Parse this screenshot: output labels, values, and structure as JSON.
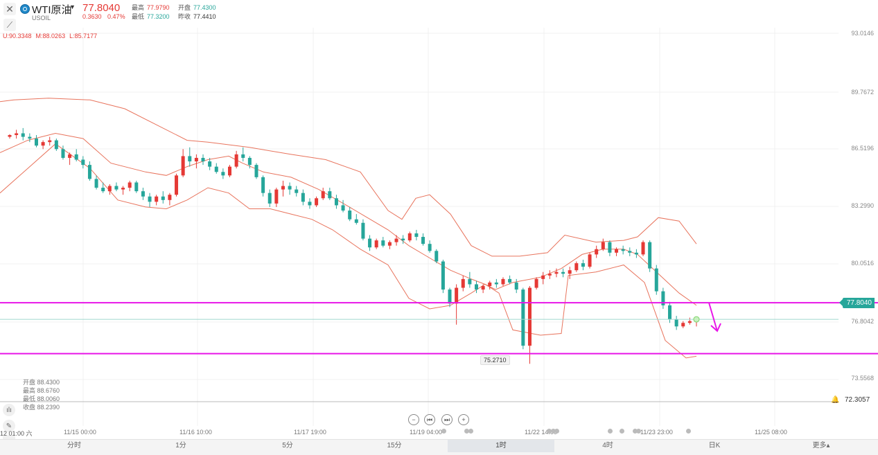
{
  "header": {
    "symbol_name": "WTI原油",
    "symbol_code": "USOIL",
    "price": "77.8040",
    "change": "0.3630",
    "change_pct": "0.47%",
    "high_label": "最高",
    "high_value": "77.9790",
    "open_label": "开盘",
    "open_value": "77.4300",
    "low_label": "最低",
    "low_value": "77.3200",
    "prev_close_label": "昨收",
    "prev_close_value": "77.4410"
  },
  "indicator": {
    "upper": "U:90.3348",
    "middle": "M:88.0263",
    "lower": "L:85.7177"
  },
  "ohlc_panel": [
    "开盘 88.4300",
    "最高 88.6760",
    "最低 88.0060",
    "收盘 88.2390"
  ],
  "price_tags": {
    "last": "77.8040",
    "alert": "72.3057",
    "annotation_low": "75.2710"
  },
  "first_date_label": "12 01:00 六",
  "timeframes": [
    "分时",
    "1分",
    "5分",
    "15分",
    "1时",
    "4时",
    "日K",
    "更多▴"
  ],
  "active_timeframe_index": 4,
  "colors": {
    "up": "#e53935",
    "down": "#26a69a",
    "band": "#e8735c",
    "horizontal_line": "#e815e8",
    "arrow": "#e815e8",
    "last_line": "#9fd6cf"
  },
  "chart_data": {
    "type": "candlestick",
    "y_ticks": [
      "93.0146",
      "89.7672",
      "86.5196",
      "83.2990",
      "80.0516",
      "76.8042",
      "73.5568"
    ],
    "ylim": [
      71.85,
      94.1
    ],
    "x_ticks": [
      "11/15 00:00",
      "11/16 10:00",
      "11/17 19:00",
      "11/19 04:00",
      "11/22 14:00",
      "11/23 23:00",
      "11/25 08:00"
    ],
    "horizontal_lines": [
      78.75,
      75.85
    ],
    "last_price": 77.804,
    "candles": [
      [
        88.2,
        88.35,
        88.1,
        88.3
      ],
      [
        88.3,
        88.6,
        88.1,
        88.4
      ],
      [
        88.4,
        88.7,
        88.0,
        88.2
      ],
      [
        88.2,
        88.4,
        87.9,
        88.1
      ],
      [
        88.1,
        88.3,
        87.6,
        87.7
      ],
      [
        87.7,
        88.0,
        87.5,
        87.9
      ],
      [
        87.9,
        88.2,
        87.7,
        88.0
      ],
      [
        88.0,
        88.1,
        87.4,
        87.5
      ],
      [
        87.5,
        87.7,
        86.9,
        87.0
      ],
      [
        87.0,
        87.3,
        86.6,
        87.2
      ],
      [
        87.2,
        87.5,
        86.8,
        86.9
      ],
      [
        86.9,
        87.1,
        86.4,
        86.6
      ],
      [
        86.6,
        86.8,
        85.7,
        85.8
      ],
      [
        85.8,
        86.0,
        85.2,
        85.3
      ],
      [
        85.3,
        85.6,
        85.0,
        85.1
      ],
      [
        85.1,
        85.5,
        84.9,
        85.4
      ],
      [
        85.4,
        85.6,
        85.1,
        85.2
      ],
      [
        85.2,
        85.4,
        84.9,
        85.3
      ],
      [
        85.3,
        85.7,
        85.1,
        85.6
      ],
      [
        85.6,
        85.7,
        85.0,
        85.1
      ],
      [
        85.1,
        85.3,
        84.6,
        84.8
      ],
      [
        84.8,
        85.0,
        84.2,
        84.5
      ],
      [
        84.5,
        84.9,
        84.3,
        84.8
      ],
      [
        84.8,
        85.1,
        84.4,
        84.6
      ],
      [
        84.6,
        85.0,
        84.3,
        84.9
      ],
      [
        84.9,
        86.1,
        84.8,
        86.0
      ],
      [
        86.0,
        87.5,
        85.9,
        87.1
      ],
      [
        87.1,
        87.6,
        86.5,
        86.8
      ],
      [
        86.8,
        87.2,
        86.4,
        87.0
      ],
      [
        87.0,
        87.2,
        86.6,
        86.8
      ],
      [
        86.8,
        87.0,
        86.3,
        86.5
      ],
      [
        86.5,
        86.7,
        86.1,
        86.2
      ],
      [
        86.2,
        86.4,
        85.8,
        86.0
      ],
      [
        86.0,
        86.6,
        85.9,
        86.5
      ],
      [
        86.5,
        87.4,
        86.4,
        87.2
      ],
      [
        87.2,
        87.6,
        86.8,
        87.0
      ],
      [
        87.0,
        87.1,
        86.4,
        86.6
      ],
      [
        86.6,
        86.7,
        85.8,
        85.9
      ],
      [
        85.9,
        86.0,
        84.8,
        85.0
      ],
      [
        85.0,
        85.2,
        84.2,
        84.4
      ],
      [
        84.4,
        85.3,
        84.2,
        85.2
      ],
      [
        85.2,
        85.7,
        84.8,
        85.4
      ],
      [
        85.4,
        85.6,
        84.9,
        85.2
      ],
      [
        85.2,
        85.4,
        84.8,
        85.0
      ],
      [
        85.0,
        85.2,
        84.3,
        84.5
      ],
      [
        84.5,
        84.7,
        84.1,
        84.3
      ],
      [
        84.3,
        84.8,
        84.2,
        84.7
      ],
      [
        84.7,
        85.3,
        84.6,
        85.1
      ],
      [
        85.1,
        85.3,
        84.6,
        84.7
      ],
      [
        84.7,
        84.9,
        84.1,
        84.3
      ],
      [
        84.3,
        84.6,
        83.9,
        84.0
      ],
      [
        84.0,
        84.2,
        83.4,
        83.5
      ],
      [
        83.5,
        83.8,
        83.2,
        83.3
      ],
      [
        83.3,
        83.5,
        82.3,
        82.4
      ],
      [
        82.4,
        82.6,
        81.7,
        81.9
      ],
      [
        81.9,
        82.4,
        81.8,
        82.3
      ],
      [
        82.3,
        82.5,
        81.9,
        82.0
      ],
      [
        82.0,
        82.3,
        81.8,
        82.2
      ],
      [
        82.2,
        82.6,
        82.0,
        82.4
      ],
      [
        82.4,
        82.6,
        82.1,
        82.3
      ],
      [
        82.3,
        82.8,
        82.2,
        82.7
      ],
      [
        82.7,
        82.9,
        82.3,
        82.5
      ],
      [
        82.5,
        82.7,
        82.0,
        82.1
      ],
      [
        82.1,
        82.3,
        81.6,
        81.7
      ],
      [
        81.7,
        81.8,
        81.0,
        81.1
      ],
      [
        81.1,
        81.2,
        79.3,
        79.5
      ],
      [
        79.5,
        79.6,
        78.5,
        78.7
      ],
      [
        78.7,
        79.8,
        77.5,
        79.6
      ],
      [
        79.6,
        80.3,
        79.4,
        80.1
      ],
      [
        80.1,
        80.5,
        79.6,
        79.8
      ],
      [
        79.8,
        80.0,
        79.3,
        79.5
      ],
      [
        79.5,
        79.8,
        79.3,
        79.7
      ],
      [
        79.7,
        80.0,
        79.5,
        79.9
      ],
      [
        79.9,
        80.1,
        79.6,
        79.8
      ],
      [
        79.8,
        80.2,
        79.7,
        80.1
      ],
      [
        80.1,
        80.3,
        79.8,
        79.9
      ],
      [
        79.9,
        80.1,
        79.3,
        79.5
      ],
      [
        79.5,
        79.6,
        76.1,
        76.3
      ],
      [
        76.3,
        79.7,
        75.27,
        79.6
      ],
      [
        79.6,
        80.2,
        79.5,
        80.1
      ],
      [
        80.1,
        80.5,
        79.8,
        80.3
      ],
      [
        80.3,
        80.6,
        80.1,
        80.4
      ],
      [
        80.4,
        80.7,
        80.2,
        80.5
      ],
      [
        80.5,
        80.7,
        80.2,
        80.4
      ],
      [
        80.4,
        80.8,
        80.1,
        80.6
      ],
      [
        80.6,
        81.1,
        80.5,
        81.0
      ],
      [
        81.0,
        81.2,
        80.6,
        80.8
      ],
      [
        80.8,
        81.6,
        80.7,
        81.5
      ],
      [
        81.5,
        82.0,
        81.3,
        81.8
      ],
      [
        81.8,
        82.4,
        81.7,
        82.2
      ],
      [
        82.2,
        82.3,
        81.4,
        81.6
      ],
      [
        81.6,
        81.9,
        81.4,
        81.8
      ],
      [
        81.8,
        82.0,
        81.5,
        81.7
      ],
      [
        81.7,
        81.9,
        81.4,
        81.6
      ],
      [
        81.6,
        81.8,
        81.3,
        81.5
      ],
      [
        81.5,
        82.3,
        81.4,
        82.2
      ],
      [
        82.2,
        82.3,
        80.5,
        80.7
      ],
      [
        80.7,
        80.9,
        79.2,
        79.4
      ],
      [
        79.4,
        79.6,
        78.4,
        78.6
      ],
      [
        78.6,
        78.8,
        77.6,
        77.8
      ],
      [
        77.8,
        78.0,
        77.2,
        77.4
      ],
      [
        77.4,
        77.7,
        77.3,
        77.6
      ],
      [
        77.6,
        77.9,
        77.5,
        77.7
      ],
      [
        77.7,
        77.9,
        77.4,
        77.8
      ]
    ],
    "bollinger": {
      "upper": [
        [
          89.6,
          -40
        ],
        [
          90.1,
          -22
        ],
        [
          90.3,
          20
        ],
        [
          90.4,
          70
        ],
        [
          90.3,
          130
        ],
        [
          89.8,
          180
        ],
        [
          88.9,
          225
        ],
        [
          88.0,
          270
        ],
        [
          87.9,
          300
        ],
        [
          87.6,
          360
        ],
        [
          87.2,
          420
        ],
        [
          86.9,
          470
        ],
        [
          86.2,
          520
        ],
        [
          84.0,
          560
        ],
        [
          83.5,
          580
        ],
        [
          84.7,
          600
        ],
        [
          84.9,
          620
        ],
        [
          83.8,
          650
        ],
        [
          82.0,
          680
        ],
        [
          81.4,
          710
        ],
        [
          81.4,
          750
        ],
        [
          81.6,
          790
        ],
        [
          82.6,
          815
        ],
        [
          82.2,
          860
        ],
        [
          82.3,
          900
        ],
        [
          82.5,
          920
        ],
        [
          83.6,
          950
        ],
        [
          83.4,
          980
        ],
        [
          82.1,
          1005
        ]
      ],
      "lower": [
        [
          85.0,
          0
        ],
        [
          86.4,
          40
        ],
        [
          87.8,
          80
        ],
        [
          86.4,
          130
        ],
        [
          84.6,
          170
        ],
        [
          84.2,
          210
        ],
        [
          84.1,
          240
        ],
        [
          84.6,
          270
        ],
        [
          85.3,
          300
        ],
        [
          85.0,
          330
        ],
        [
          84.1,
          360
        ],
        [
          84.1,
          390
        ],
        [
          83.8,
          420
        ],
        [
          83.5,
          450
        ],
        [
          82.9,
          480
        ],
        [
          81.8,
          520
        ],
        [
          80.9,
          560
        ],
        [
          79.0,
          590
        ],
        [
          78.4,
          620
        ],
        [
          78.6,
          650
        ],
        [
          79.3,
          680
        ],
        [
          79.8,
          700
        ],
        [
          79.3,
          720
        ],
        [
          77.2,
          740
        ],
        [
          76.9,
          780
        ],
        [
          77.0,
          810
        ],
        [
          80.3,
          820
        ],
        [
          80.5,
          860
        ],
        [
          80.9,
          900
        ],
        [
          79.9,
          930
        ],
        [
          76.6,
          960
        ],
        [
          75.6,
          990
        ],
        [
          75.7,
          1005
        ]
      ],
      "middle": [
        [
          87.3,
          0
        ],
        [
          88.0,
          40
        ],
        [
          88.4,
          80
        ],
        [
          88.1,
          120
        ],
        [
          86.7,
          160
        ],
        [
          86.2,
          210
        ],
        [
          86.0,
          240
        ],
        [
          86.5,
          270
        ],
        [
          86.9,
          300
        ],
        [
          87.1,
          330
        ],
        [
          86.7,
          350
        ],
        [
          86.2,
          380
        ],
        [
          85.9,
          420
        ],
        [
          85.2,
          460
        ],
        [
          84.3,
          500
        ],
        [
          83.6,
          530
        ],
        [
          82.9,
          560
        ],
        [
          82.0,
          590
        ],
        [
          81.3,
          620
        ],
        [
          80.6,
          650
        ],
        [
          80.1,
          680
        ],
        [
          79.8,
          700
        ],
        [
          79.5,
          715
        ],
        [
          79.9,
          740
        ],
        [
          80.2,
          780
        ],
        [
          80.7,
          810
        ],
        [
          81.5,
          840
        ],
        [
          81.8,
          870
        ],
        [
          81.8,
          900
        ],
        [
          81.5,
          920
        ],
        [
          80.4,
          950
        ],
        [
          79.3,
          980
        ],
        [
          78.6,
          1005
        ]
      ]
    }
  }
}
